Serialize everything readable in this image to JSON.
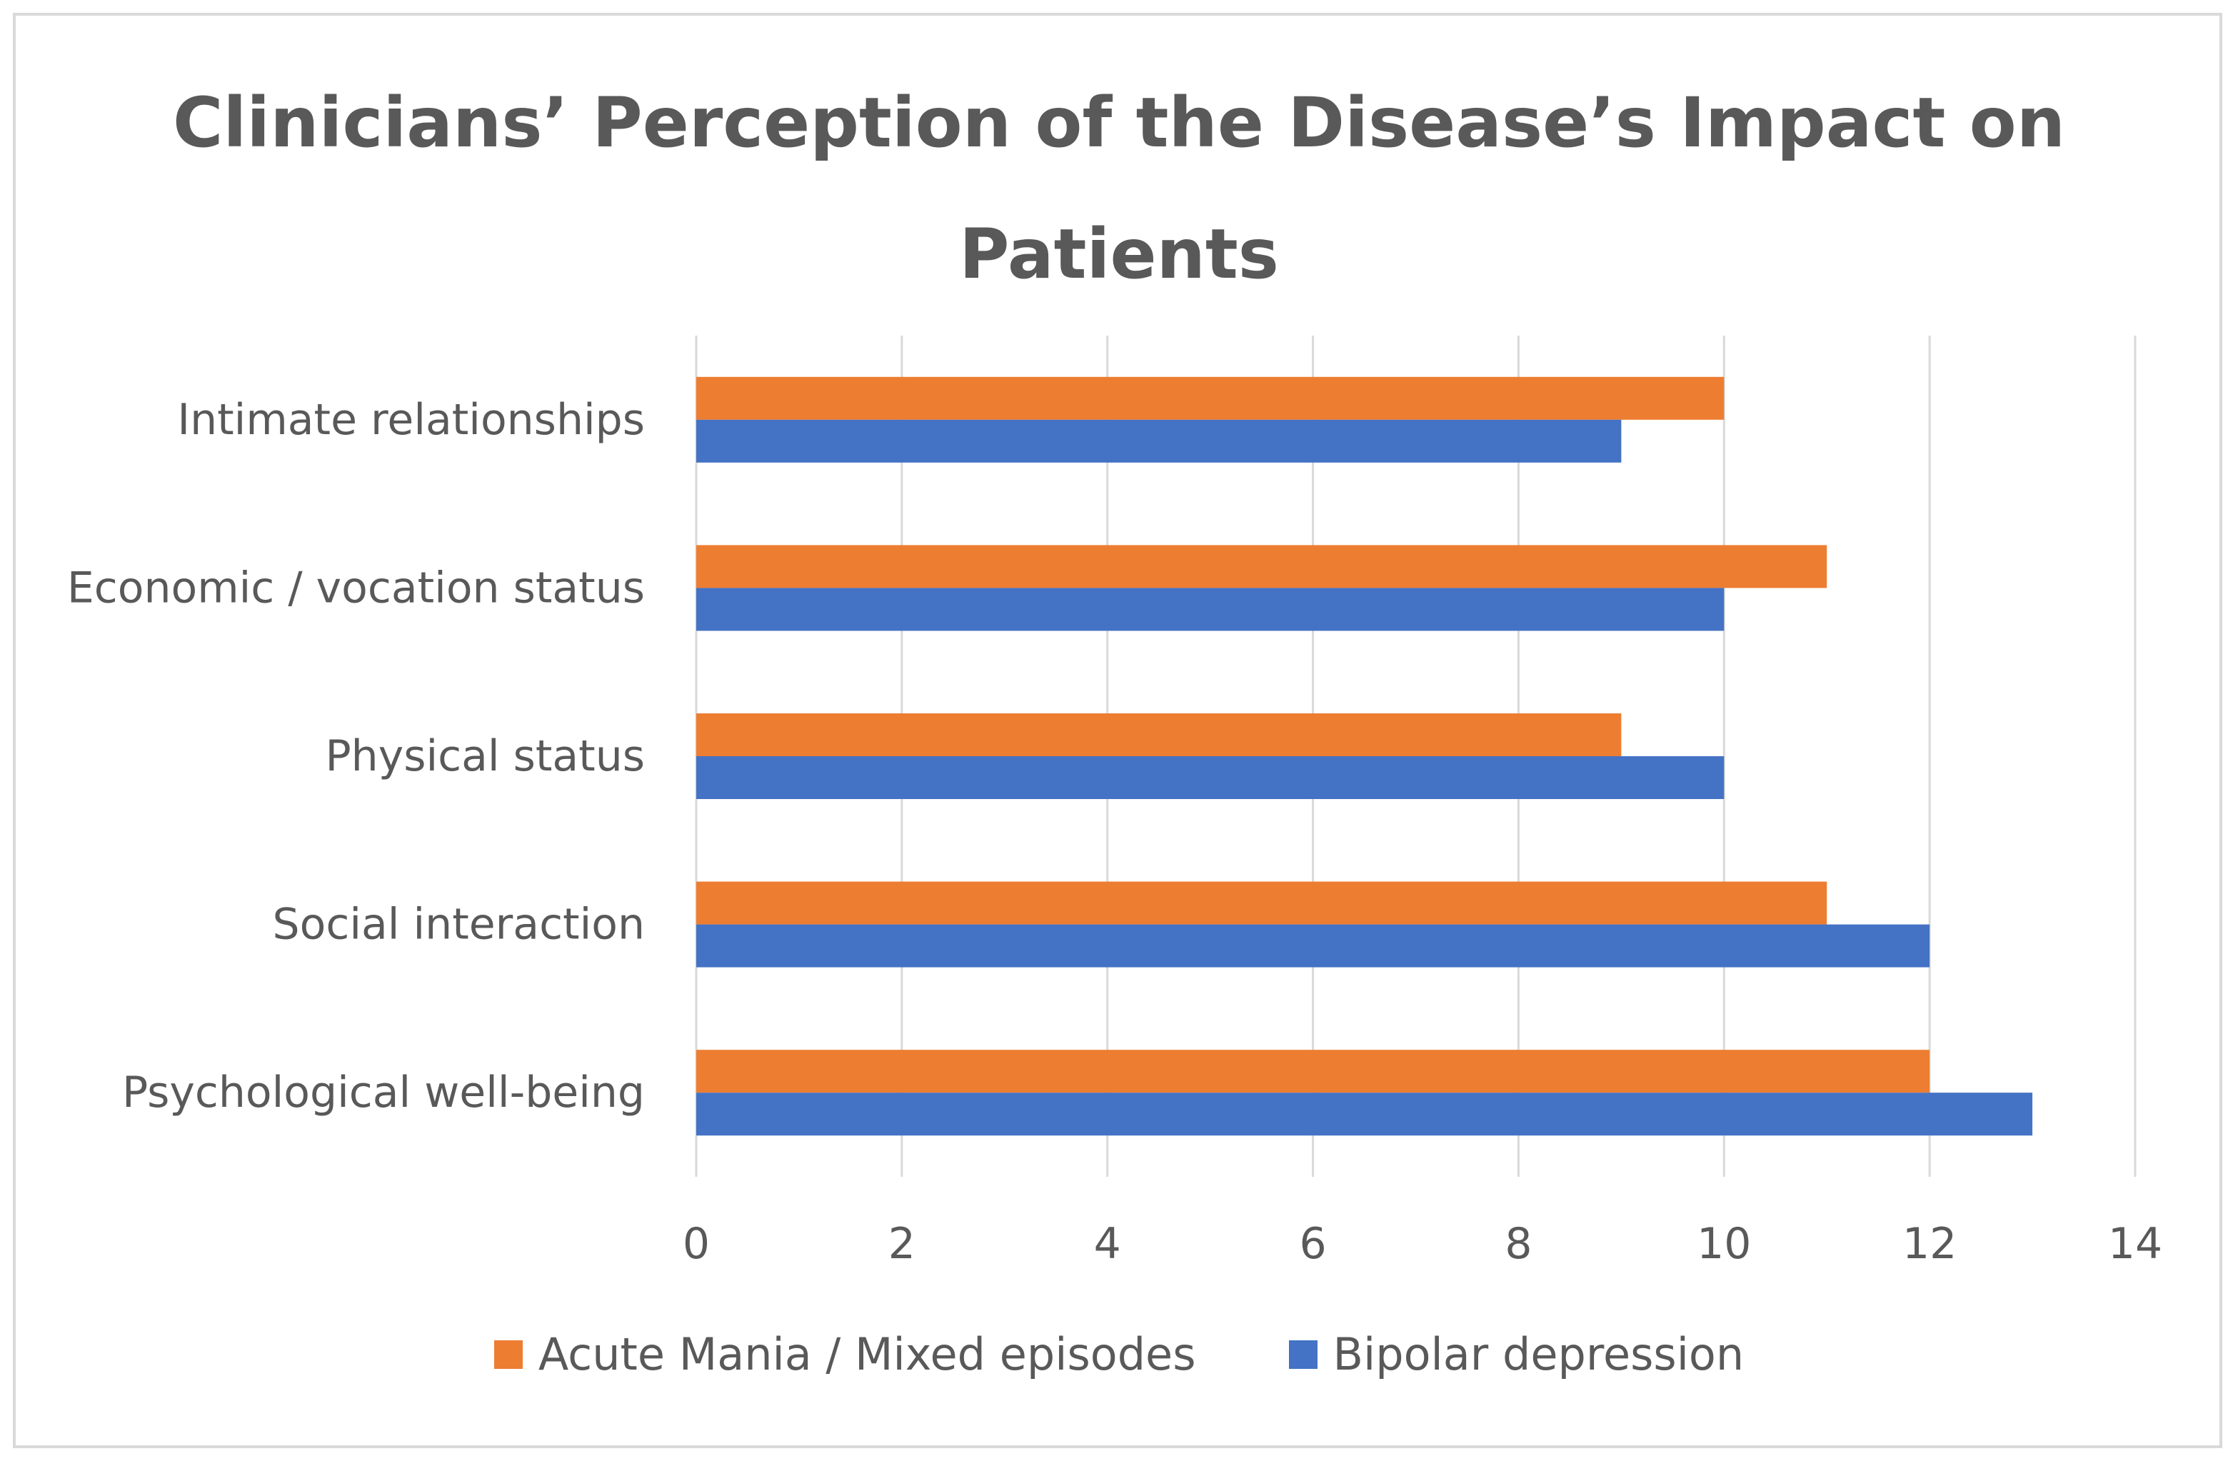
{
  "chart_data": {
    "type": "bar",
    "orientation": "horizontal",
    "title": "Clinicians’ Perception of the Disease’s Impact on Patients",
    "title_lines": [
      "Clinicians’ Perception of the Disease’s Impact on",
      "Patients"
    ],
    "categories": [
      "Psychological well-being",
      "Social interaction",
      "Physical status",
      "Economic / vocation status",
      "Intimate relationships"
    ],
    "series": [
      {
        "name": "Acute Mania / Mixed episodes",
        "color": "#ed7d31",
        "values": [
          12,
          11,
          9,
          11,
          10
        ]
      },
      {
        "name": "Bipolar depression",
        "color": "#4472c4",
        "values": [
          13,
          12,
          10,
          10,
          9
        ]
      }
    ],
    "xlim": [
      0,
      14
    ],
    "xticks": [
      0,
      2,
      4,
      6,
      8,
      10,
      12,
      14
    ],
    "xlabel": "",
    "ylabel": "",
    "grid": "vertical",
    "legend_position": "bottom"
  }
}
